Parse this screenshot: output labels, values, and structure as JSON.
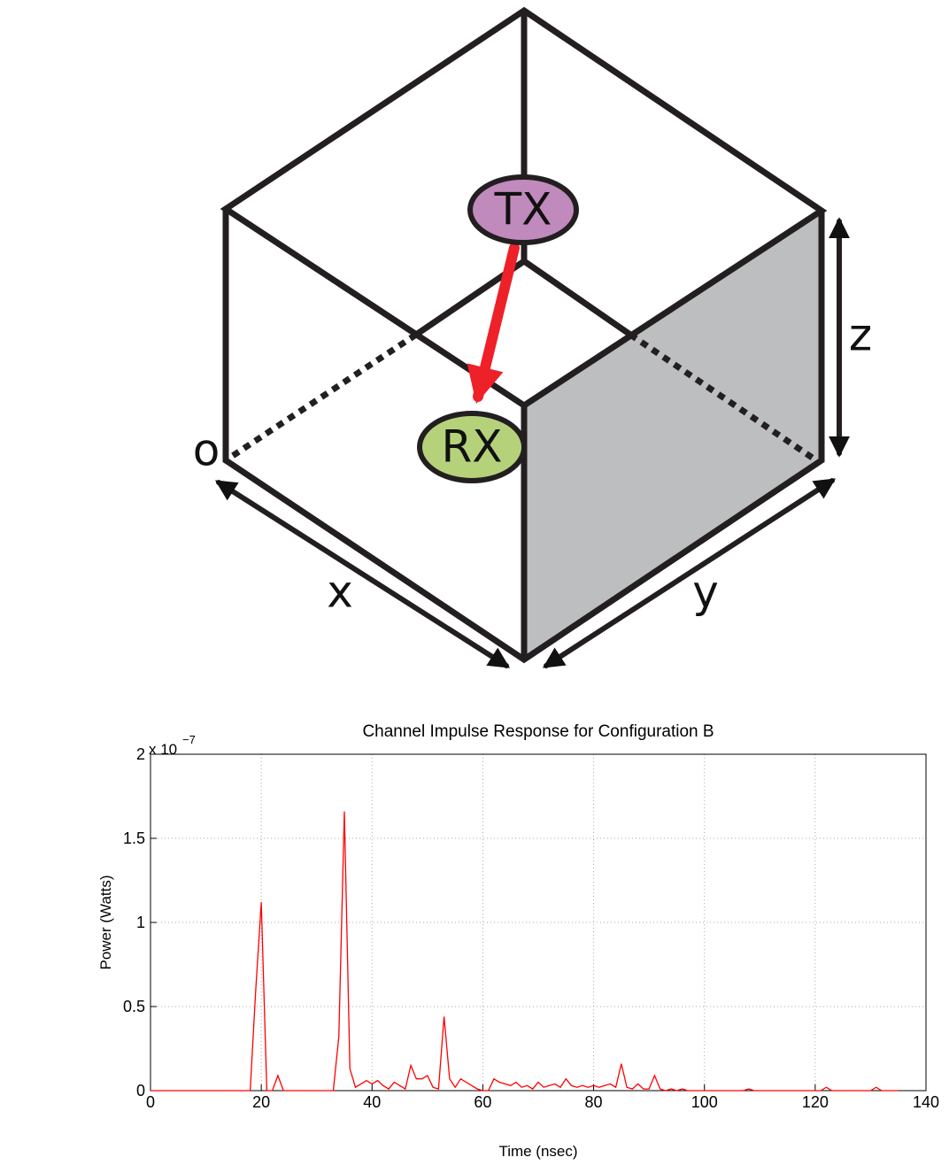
{
  "diagram": {
    "labels": {
      "tx": "TX",
      "rx": "RX",
      "origin": "o",
      "x": "x",
      "y": "y",
      "z": "z"
    }
  },
  "chart_data": {
    "type": "line",
    "title": "Channel Impulse Response for Configuration B",
    "x_label": "Time (nsec)",
    "y_label": "Power (Watts)",
    "y_multiplier": "x 10",
    "y_multiplier_exponent": "−7",
    "x": [
      0,
      1,
      2,
      3,
      4,
      5,
      6,
      7,
      8,
      9,
      10,
      11,
      12,
      13,
      14,
      15,
      16,
      17,
      18,
      19,
      20,
      21,
      22,
      23,
      24,
      25,
      26,
      27,
      28,
      29,
      30,
      31,
      32,
      33,
      34,
      35,
      36,
      37,
      38,
      39,
      40,
      41,
      42,
      43,
      44,
      45,
      46,
      47,
      48,
      49,
      50,
      51,
      52,
      53,
      54,
      55,
      56,
      57,
      58,
      59,
      60,
      61,
      62,
      63,
      64,
      65,
      66,
      67,
      68,
      69,
      70,
      71,
      72,
      73,
      74,
      75,
      76,
      77,
      78,
      79,
      80,
      81,
      82,
      83,
      84,
      85,
      86,
      87,
      88,
      89,
      90,
      91,
      92,
      93,
      94,
      95,
      96,
      97,
      98,
      99,
      100,
      101,
      102,
      103,
      104,
      105,
      106,
      107,
      108,
      109,
      110,
      111,
      112,
      113,
      114,
      115,
      116,
      117,
      118,
      119,
      120,
      121,
      122,
      123,
      124,
      125,
      126,
      127,
      128,
      129,
      130,
      131,
      132,
      133,
      134,
      135
    ],
    "series": [
      {
        "color": "#ff0000",
        "values": [
          0,
          0,
          0,
          0,
          0,
          0,
          0,
          0,
          0,
          0,
          0,
          0,
          0,
          0,
          0,
          0,
          0,
          0,
          0,
          0.6,
          1.12,
          0,
          0,
          0.09,
          0,
          0,
          0,
          0,
          0,
          0,
          0,
          0,
          0,
          0,
          0.32,
          1.66,
          0.13,
          0.02,
          0.04,
          0.06,
          0.04,
          0.06,
          0.03,
          0.01,
          0.05,
          0.03,
          0.01,
          0.15,
          0.07,
          0.07,
          0.09,
          0.02,
          0.01,
          0.44,
          0.07,
          0.02,
          0.07,
          0.05,
          0.03,
          0.01,
          0,
          0,
          0.07,
          0.05,
          0.04,
          0.03,
          0.05,
          0.02,
          0.03,
          0.01,
          0.05,
          0.02,
          0.03,
          0.04,
          0.02,
          0.07,
          0.03,
          0.02,
          0.03,
          0.02,
          0.03,
          0.02,
          0.03,
          0.04,
          0.02,
          0.16,
          0.02,
          0.01,
          0.04,
          0.01,
          0.01,
          0.09,
          0.01,
          0,
          0.01,
          0,
          0.01,
          0,
          0,
          0,
          0,
          0,
          0,
          0,
          0,
          0,
          0,
          0,
          0.01,
          0,
          0,
          0,
          0,
          0,
          0,
          0,
          0,
          0,
          0,
          0,
          0,
          0,
          0.02,
          0,
          0,
          0,
          0,
          0,
          0,
          0,
          0,
          0.02,
          0,
          0,
          0,
          0
        ]
      }
    ],
    "xlim": [
      0,
      140
    ],
    "xticks": [
      0,
      20,
      40,
      60,
      80,
      100,
      120,
      140
    ],
    "ylim": [
      0,
      2
    ],
    "yticks": [
      0,
      0.5,
      1,
      1.5,
      2
    ],
    "grid": true
  }
}
